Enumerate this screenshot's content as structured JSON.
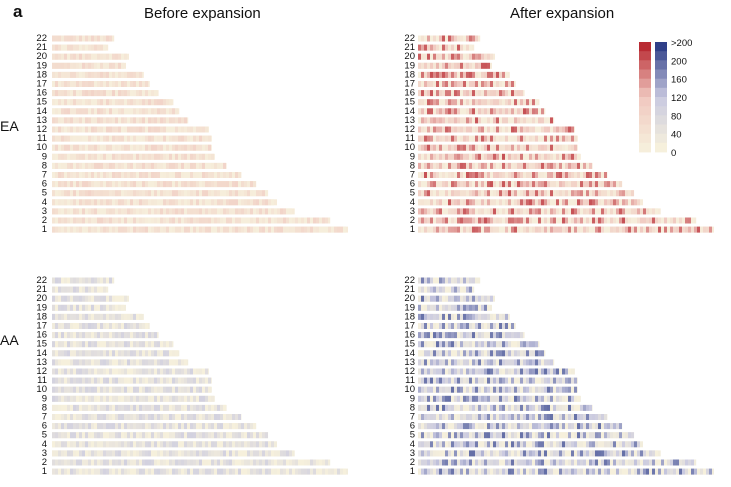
{
  "figure": {
    "panel_label": "a",
    "column_titles": [
      "Before expansion",
      "After expansion"
    ],
    "row_labels": [
      "EA",
      "AA"
    ]
  },
  "chart_data": {
    "type": "heatmap",
    "title": "",
    "xlabel": "",
    "ylabel": "",
    "chromosomes": [
      "22",
      "21",
      "20",
      "19",
      "18",
      "17",
      "16",
      "15",
      "14",
      "13",
      "12",
      "11",
      "10",
      "9",
      "8",
      "7",
      "6",
      "5",
      "4",
      "3",
      "2",
      "1"
    ],
    "rows": [
      "EA",
      "AA"
    ],
    "columns": [
      "Before expansion",
      "After expansion"
    ],
    "color_scale": {
      "tick_labels": [
        ">200",
        "200",
        "160",
        "120",
        "80",
        "40",
        "0"
      ],
      "value_range": [
        0,
        200
      ],
      "ea_colormap": [
        "#f6eedb",
        "#f0c8c0",
        "#b92b33"
      ],
      "aa_colormap": [
        "#f6f0dc",
        "#c9c9e0",
        "#2f3f88"
      ]
    },
    "panels": [
      {
        "row": "EA",
        "column": "Before expansion",
        "intensity_level": 0.22
      },
      {
        "row": "EA",
        "column": "After expansion",
        "intensity_level": 0.55
      },
      {
        "row": "AA",
        "column": "Before expansion",
        "intensity_level": 0.25
      },
      {
        "row": "AA",
        "column": "After expansion",
        "intensity_level": 0.52
      }
    ]
  }
}
